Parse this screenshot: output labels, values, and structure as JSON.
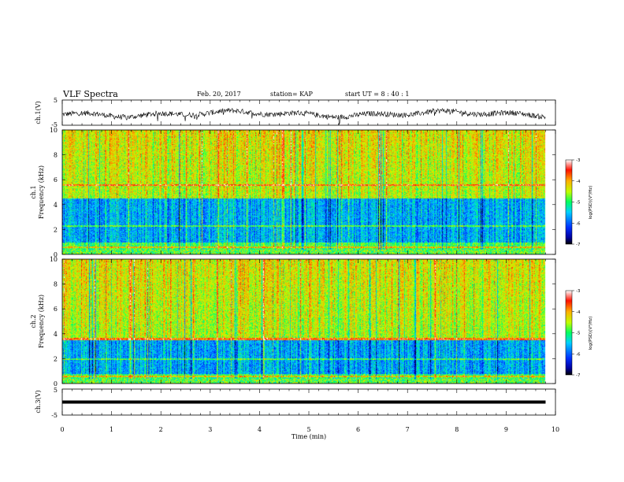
{
  "header": {
    "title": "VLF Spectra",
    "date": "Feb. 20, 2017",
    "station": "station= KAP",
    "start": "start  UT =  8 : 40 : 1"
  },
  "chart_data": [
    {
      "type": "line",
      "panel": "ch1-waveform",
      "ylabel": "ch.1(V)",
      "ylim": [
        -5,
        5
      ],
      "yticks": [
        "5",
        "-5"
      ],
      "xlim": [
        0,
        10
      ],
      "trace_x_end": 9.8,
      "description_values": {
        "mean": -0.5,
        "amplitude": 1.5
      }
    },
    {
      "type": "heatmap",
      "panel": "ch1-spectrogram",
      "ylabel": "ch.1\nFrequency (kHz)",
      "ylim": [
        0,
        10
      ],
      "yticks": [
        "0",
        "2",
        "4",
        "6",
        "8",
        "10"
      ],
      "xlim": [
        0,
        10
      ],
      "data_x_end": 9.8,
      "low_power_band_khz": [
        1,
        4.5
      ],
      "horizontal_lines_khz": [
        5.6,
        2.3,
        0.6,
        0.3
      ],
      "colorbar": {
        "label": "log(PSD)(V²/Hz)",
        "range": [
          -7,
          -3
        ],
        "ticks": [
          "-3",
          "-4",
          "-5",
          "-6",
          "-7"
        ]
      }
    },
    {
      "type": "heatmap",
      "panel": "ch2-spectrogram",
      "ylabel": "ch.2\nFrequency (kHz)",
      "ylim": [
        0,
        10
      ],
      "yticks": [
        "0",
        "2",
        "4",
        "6",
        "8",
        "10"
      ],
      "xlim": [
        0,
        10
      ],
      "data_x_end": 9.8,
      "low_power_band_khz": [
        0.8,
        3.5
      ],
      "horizontal_lines_khz": [
        3.6,
        2.0,
        0.6
      ],
      "colorbar": {
        "label": "log(PSD)(V²/Hz)",
        "range": [
          -7,
          -3
        ],
        "ticks": [
          "-3",
          "-4",
          "-5",
          "-6",
          "-7"
        ]
      }
    },
    {
      "type": "line",
      "panel": "ch3-waveform",
      "ylabel": "ch.3(V)",
      "ylim": [
        -5,
        5
      ],
      "yticks": [
        "5",
        "-5"
      ],
      "xlim": [
        0,
        10
      ],
      "trace_x_end": 9.8,
      "constant_value": 0
    }
  ],
  "xaxis": {
    "label": "Time (min)",
    "ticks": [
      "0",
      "1",
      "2",
      "3",
      "4",
      "5",
      "6",
      "7",
      "8",
      "9",
      "10"
    ]
  },
  "ylabels": {
    "ch1_wave": "ch.1(V)",
    "ch1_spec_a": "ch.1",
    "ch1_spec_b": "Frequency (kHz)",
    "ch2_spec_a": "ch.2",
    "ch2_spec_b": "Frequency (kHz)",
    "ch3_wave": "ch.3(V)"
  },
  "colorbar_label": "log(PSD)(V²/Hz)"
}
